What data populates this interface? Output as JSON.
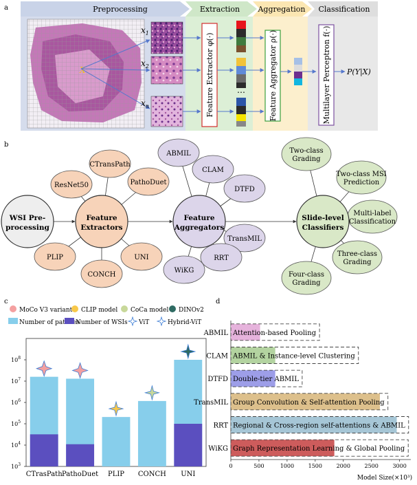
{
  "panel_a": {
    "letter": "a",
    "stages": [
      "Preprocessing",
      "Extraction",
      "Aggregation",
      "Classification"
    ],
    "patch_labels": [
      "x",
      "x",
      "x"
    ],
    "patch_subs": [
      "1",
      "2",
      "n"
    ],
    "wsi_label": "X",
    "extractor": "Feature Extractor φ(·)",
    "aggregator": "Feature Aggregator ρ(·)",
    "classifier": "Multilayer Perceptron f(·)",
    "output": "P(Y|X)",
    "dots": "⋯",
    "colors": {
      "preprocessing": "#c9d3e8",
      "extraction": "#cfe7c8",
      "aggregation": "#fbe6b2",
      "classification": "#dedede"
    }
  },
  "panel_b": {
    "letter": "b",
    "wsi_lines": [
      "WSI Pre-",
      "processing"
    ],
    "extractors_hub": [
      "Feature",
      "Extractors"
    ],
    "aggregators_hub": [
      "Feature",
      "Aggregators"
    ],
    "classifiers_hub": [
      "Slide-level",
      "Classifiers"
    ],
    "extractors": [
      [
        "ResNet50"
      ],
      [
        "CTransPath"
      ],
      [
        "PathoDuet"
      ],
      [
        "PLIP"
      ],
      [
        "CONCH"
      ],
      [
        "UNI"
      ]
    ],
    "aggregators": [
      [
        "ABMIL"
      ],
      [
        "CLAM"
      ],
      [
        "DTFD"
      ],
      [
        "TransMIL"
      ],
      [
        "RRT"
      ],
      [
        "WiKG"
      ]
    ],
    "classifiers": [
      [
        "Two-class",
        "Grading"
      ],
      [
        "Two-class MSI",
        "Prediction"
      ],
      [
        "Multi-label",
        "Classification"
      ],
      [
        "Three-class",
        "Grading"
      ],
      [
        "Four-class",
        "Grading"
      ]
    ],
    "colors": {
      "extractor": "#f7d3b9",
      "aggregator": "#dcd5ea",
      "classifier": "#d9e8c7",
      "wsi": "#eeeeee"
    }
  },
  "panel_c": {
    "letter": "c",
    "legend": [
      "MoCo V3 variant",
      "CLIP model",
      "CoCa model",
      "DINOv2",
      "Number of patches",
      "Number of WSIs",
      "ViT",
      "Hybrid-ViT"
    ],
    "y_ticks": [
      {
        "base": "10",
        "exp": "3"
      },
      {
        "base": "10",
        "exp": "4"
      },
      {
        "base": "10",
        "exp": "5"
      },
      {
        "base": "10",
        "exp": "6"
      },
      {
        "base": "10",
        "exp": "7"
      },
      {
        "base": "10",
        "exp": "8"
      }
    ],
    "colors": {
      "patches": "#87ceeb",
      "wsis": "#5b4fbf",
      "moco": "#f4a0a0",
      "clip": "#f8c84a",
      "coca": "#c8d89a",
      "dino": "#2f6b63"
    }
  },
  "panel_d": {
    "letter": "d",
    "x_ticks": [
      "0",
      "500",
      "1000",
      "1500",
      "2000",
      "2500",
      "3000"
    ],
    "x_label": "Model Size(×10³)",
    "colors": {
      "ABMIL": "#e6b3dc",
      "CLAM": "#b3d3a0",
      "DTFD": "#9d9ee8",
      "TransMIL": "#ddc08c",
      "RRT": "#a6c6d6",
      "WiKG": "#cd5c5c"
    }
  },
  "chart_data": [
    {
      "type": "bar",
      "title": "",
      "categories": [
        "CTrasPath",
        "PathoDuet",
        "PLIP",
        "CONCH",
        "UNI"
      ],
      "log_scale": true,
      "ylim": [
        1000,
        1000000000
      ],
      "series": [
        {
          "name": "Number of patches",
          "values": [
            16000000,
            13000000,
            208000,
            1170000,
            100000000
          ]
        },
        {
          "name": "Number of WSIs",
          "values": [
            32000,
            11000,
            0,
            0,
            100000
          ]
        }
      ],
      "model_type": [
        "MoCo V3 variant",
        "MoCo V3 variant",
        "CLIP model",
        "CoCa model",
        "DINOv2"
      ],
      "architecture": [
        "Hybrid-ViT",
        "Hybrid-ViT",
        "ViT",
        "ViT",
        "ViT"
      ]
    },
    {
      "type": "bar",
      "orientation": "horizontal",
      "categories": [
        "ABMIL",
        "CLAM",
        "DTFD",
        "TransMIL",
        "RRT",
        "WiKG"
      ],
      "values": [
        520,
        790,
        790,
        2650,
        2950,
        1840
      ],
      "descriptions": [
        "Attention-based Pooling",
        "ABMIL & Instance-level Clustering",
        "Double-tier ABMIL",
        "Group Convolution & Self-attention Pooling",
        "Regional & Cross-region self-attentions & ABMIL",
        "Graph Representation Learning  & Global Pooling"
      ],
      "xlim": [
        0,
        3200
      ],
      "xlabel": "Model Size(×10³)"
    }
  ]
}
